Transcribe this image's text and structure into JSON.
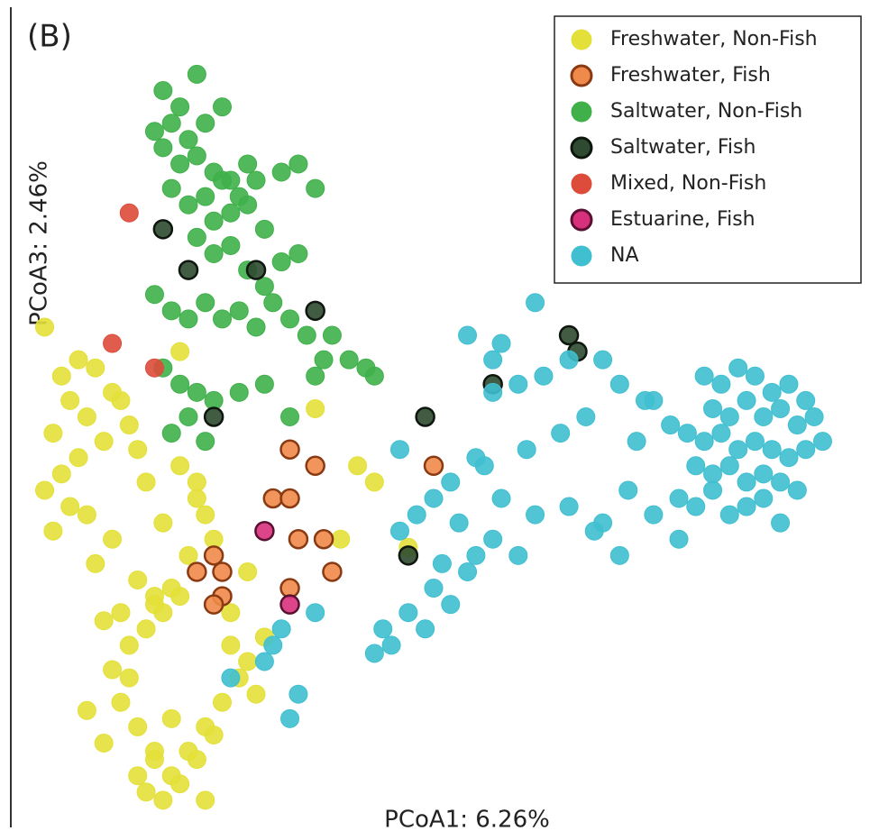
{
  "chart_data": {
    "type": "scatter",
    "title": "(B)",
    "x_label": "PCoA1: 6.26%",
    "y_label": "PCoA3: 2.46%",
    "xlim": [
      0,
      100
    ],
    "ylim": [
      0,
      100
    ],
    "legend": "upper right",
    "series": [
      {
        "name": "Freshwater, Non-Fish",
        "color": "#e3e03a",
        "x": [
          4,
          6,
          8,
          5,
          7,
          9,
          10,
          12,
          4,
          6,
          8,
          11,
          13,
          14,
          9,
          7,
          5,
          15,
          16,
          12,
          10,
          18,
          20,
          22,
          17,
          19,
          21,
          24,
          23,
          14,
          16,
          18,
          20,
          12,
          13,
          15,
          11,
          9,
          17,
          19,
          21,
          23,
          25,
          27,
          26,
          28,
          30,
          29,
          16,
          18,
          20,
          22,
          24,
          14,
          15,
          17,
          19,
          13,
          26,
          28,
          22,
          20,
          41,
          43,
          39,
          36,
          47,
          15,
          17,
          11,
          23
        ],
        "values": [
          61,
          55,
          57,
          48,
          52,
          50,
          56,
          53,
          41,
          43,
          45,
          47,
          52,
          49,
          38,
          39,
          36,
          46,
          42,
          35,
          32,
          37,
          44,
          42,
          27,
          29,
          33,
          35,
          38,
          22,
          24,
          26,
          28,
          19,
          15,
          12,
          10,
          14,
          8,
          6,
          9,
          12,
          15,
          18,
          22,
          20,
          23,
          16,
          4,
          3,
          5,
          8,
          11,
          18,
          6,
          9,
          13,
          26,
          26,
          31,
          40,
          58,
          44,
          42,
          35,
          51,
          34,
          30,
          28,
          25,
          3
        ]
      },
      {
        "name": "Freshwater, Fish",
        "color": "#ef8a4a",
        "edgecolor": "#8a3a12",
        "x": [
          33,
          36,
          31,
          33,
          34,
          37,
          38,
          24,
          22,
          25,
          25,
          24,
          33,
          50
        ],
        "values": [
          46,
          44,
          40,
          40,
          35,
          35,
          31,
          33,
          31,
          31,
          28,
          27,
          29,
          44
        ]
      },
      {
        "name": "Saltwater, Non-Fish",
        "color": "#3fb04a",
        "x": [
          18,
          20,
          22,
          17,
          19,
          21,
          23,
          25,
          18,
          20,
          22,
          24,
          26,
          28,
          19,
          21,
          23,
          25,
          27,
          29,
          24,
          26,
          28,
          30,
          32,
          34,
          36,
          22,
          24,
          26,
          28,
          30,
          32,
          34,
          17,
          19,
          21,
          23,
          25,
          27,
          29,
          31,
          33,
          35,
          37,
          40,
          42,
          43,
          18,
          20,
          22,
          19,
          21,
          24,
          27,
          30,
          33,
          36,
          23,
          38
        ],
        "values": [
          90,
          88,
          92,
          85,
          86,
          84,
          86,
          88,
          83,
          81,
          82,
          80,
          79,
          81,
          78,
          76,
          77,
          79,
          77,
          79,
          74,
          75,
          76,
          73,
          80,
          81,
          78,
          72,
          70,
          71,
          68,
          66,
          69,
          70,
          65,
          63,
          62,
          64,
          62,
          63,
          61,
          64,
          62,
          60,
          57,
          57,
          56,
          55,
          56,
          54,
          53,
          48,
          50,
          52,
          53,
          54,
          50,
          55,
          47,
          60
        ]
      },
      {
        "name": "Saltwater, Fish",
        "color": "#2e4a30",
        "edgecolor": "#0e160e",
        "x": [
          18,
          21,
          29,
          36,
          24,
          49,
          57,
          66,
          67,
          47
        ],
        "values": [
          73,
          68,
          68,
          63,
          50,
          50,
          54,
          60,
          58,
          33
        ]
      },
      {
        "name": "Mixed, Non-Fish",
        "color": "#dd4b3a",
        "x": [
          14,
          12,
          17
        ],
        "values": [
          75,
          59,
          56
        ]
      },
      {
        "name": "Estuarine, Fish",
        "color": "#d8317c",
        "edgecolor": "#5a1030",
        "x": [
          30,
          33
        ],
        "values": [
          36,
          27
        ]
      },
      {
        "name": "NA",
        "color": "#3fbfd0",
        "x": [
          82,
          84,
          86,
          88,
          90,
          92,
          94,
          83,
          85,
          87,
          89,
          91,
          93,
          95,
          80,
          82,
          84,
          86,
          88,
          90,
          92,
          94,
          96,
          81,
          83,
          85,
          87,
          89,
          91,
          93,
          79,
          81,
          83,
          85,
          87,
          89,
          91,
          78,
          76,
          74,
          62,
          58,
          54,
          57,
          60,
          63,
          66,
          70,
          72,
          75,
          68,
          65,
          61,
          56,
          52,
          55,
          58,
          62,
          66,
          70,
          73,
          76,
          79,
          72,
          69,
          60,
          50,
          53,
          48,
          46,
          51,
          54,
          57,
          50,
          47,
          45,
          44,
          49,
          52,
          55,
          46,
          57,
          36,
          32,
          30,
          26,
          34,
          31,
          33,
          43
        ],
        "values": [
          55,
          54,
          56,
          55,
          53,
          54,
          52,
          51,
          50,
          52,
          50,
          51,
          49,
          50,
          48,
          47,
          48,
          46,
          47,
          46,
          45,
          46,
          47,
          44,
          43,
          44,
          42,
          43,
          42,
          41,
          40,
          39,
          41,
          38,
          39,
          40,
          37,
          49,
          52,
          47,
          64,
          59,
          60,
          57,
          54,
          55,
          57,
          57,
          54,
          52,
          50,
          48,
          46,
          44,
          42,
          45,
          40,
          38,
          39,
          37,
          41,
          38,
          35,
          33,
          36,
          33,
          40,
          37,
          38,
          36,
          32,
          31,
          35,
          29,
          26,
          22,
          24,
          24,
          27,
          33,
          46,
          53,
          26,
          24,
          20,
          18,
          16,
          22,
          13,
          21
        ]
      }
    ]
  }
}
